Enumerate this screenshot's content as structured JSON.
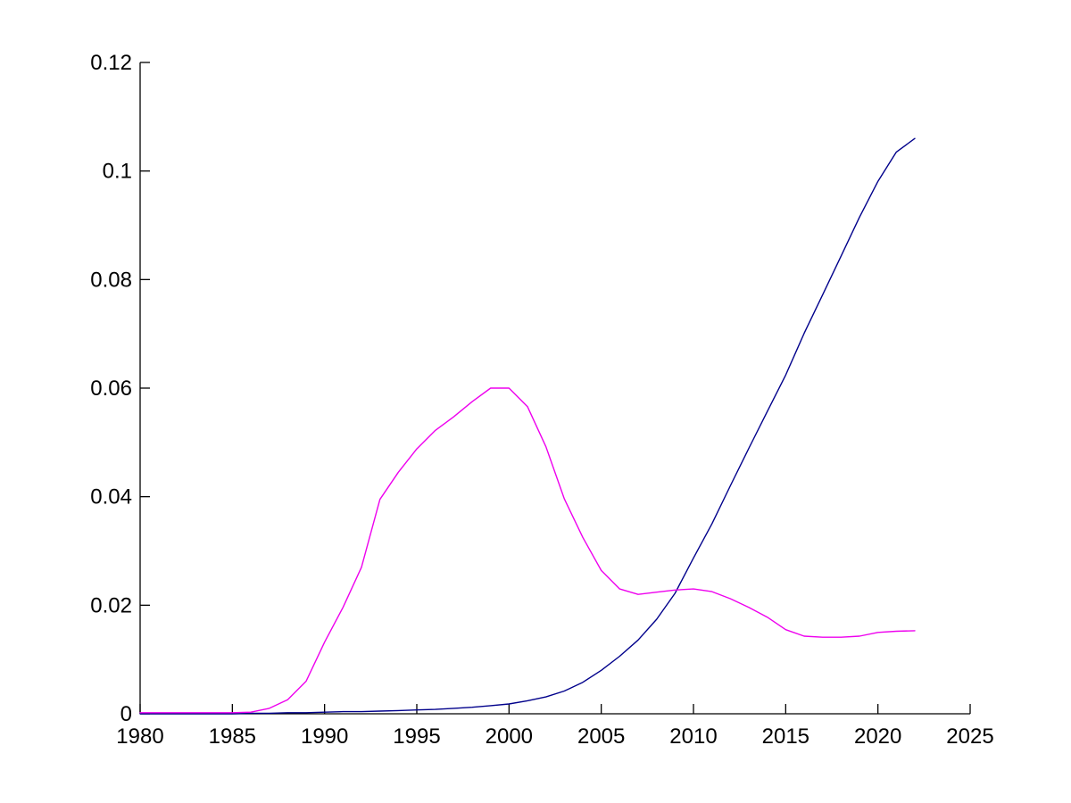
{
  "figure": {
    "background": "#ffffff",
    "axis_color": "#000000",
    "title": ""
  },
  "chart_data": {
    "type": "line",
    "title": "",
    "xlabel": "",
    "ylabel": "",
    "grid": false,
    "legend": false,
    "xlim": [
      1980,
      2025
    ],
    "ylim": [
      0,
      0.12
    ],
    "x_ticks": [
      1980,
      1985,
      1990,
      1995,
      2000,
      2005,
      2010,
      2015,
      2020,
      2025
    ],
    "x_tick_labels": [
      "1980",
      "1985",
      "1990",
      "1995",
      "2000",
      "2005",
      "2010",
      "2015",
      "2020",
      "2025"
    ],
    "y_ticks": [
      0,
      0.02,
      0.04,
      0.06,
      0.08,
      0.1,
      0.12
    ],
    "y_tick_labels": [
      "0",
      "0.02",
      "0.04",
      "0.06",
      "0.08",
      "0.1",
      "0.12"
    ],
    "x": [
      1980,
      1981,
      1982,
      1983,
      1984,
      1985,
      1986,
      1987,
      1988,
      1989,
      1990,
      1991,
      1992,
      1993,
      1994,
      1995,
      1996,
      1997,
      1998,
      1999,
      2000,
      2001,
      2002,
      2003,
      2004,
      2005,
      2006,
      2007,
      2008,
      2009,
      2010,
      2011,
      2012,
      2013,
      2014,
      2015,
      2016,
      2017,
      2018,
      2019,
      2020,
      2021,
      2022
    ],
    "series": [
      {
        "name": "blue",
        "color": "#00008B",
        "values": [
          0.0,
          0.0,
          0.0,
          0.0,
          0.0,
          0.0,
          0.0001,
          0.0001,
          0.0002,
          0.0002,
          0.0003,
          0.0004,
          0.0004,
          0.0005,
          0.0006,
          0.0007,
          0.0008,
          0.001,
          0.0012,
          0.0015,
          0.0018,
          0.0024,
          0.0031,
          0.0042,
          0.0058,
          0.008,
          0.0106,
          0.0136,
          0.0174,
          0.0222,
          0.0287,
          0.035,
          0.042,
          0.0489,
          0.0557,
          0.0624,
          0.0701,
          0.0772,
          0.0843,
          0.0915,
          0.0981,
          0.1035,
          0.106
        ]
      },
      {
        "name": "magenta",
        "color": "#EE00EE",
        "values": [
          0.0002,
          0.0002,
          0.0002,
          0.0002,
          0.0002,
          0.0002,
          0.0003,
          0.001,
          0.0026,
          0.006,
          0.0132,
          0.0196,
          0.027,
          0.0395,
          0.0445,
          0.0488,
          0.0522,
          0.0547,
          0.0575,
          0.06,
          0.06,
          0.0566,
          0.0492,
          0.0396,
          0.0325,
          0.0264,
          0.023,
          0.022,
          0.0224,
          0.0228,
          0.023,
          0.0225,
          0.0212,
          0.0196,
          0.0178,
          0.0155,
          0.0143,
          0.0141,
          0.0141,
          0.0143,
          0.015,
          0.0152,
          0.0153
        ]
      }
    ]
  }
}
